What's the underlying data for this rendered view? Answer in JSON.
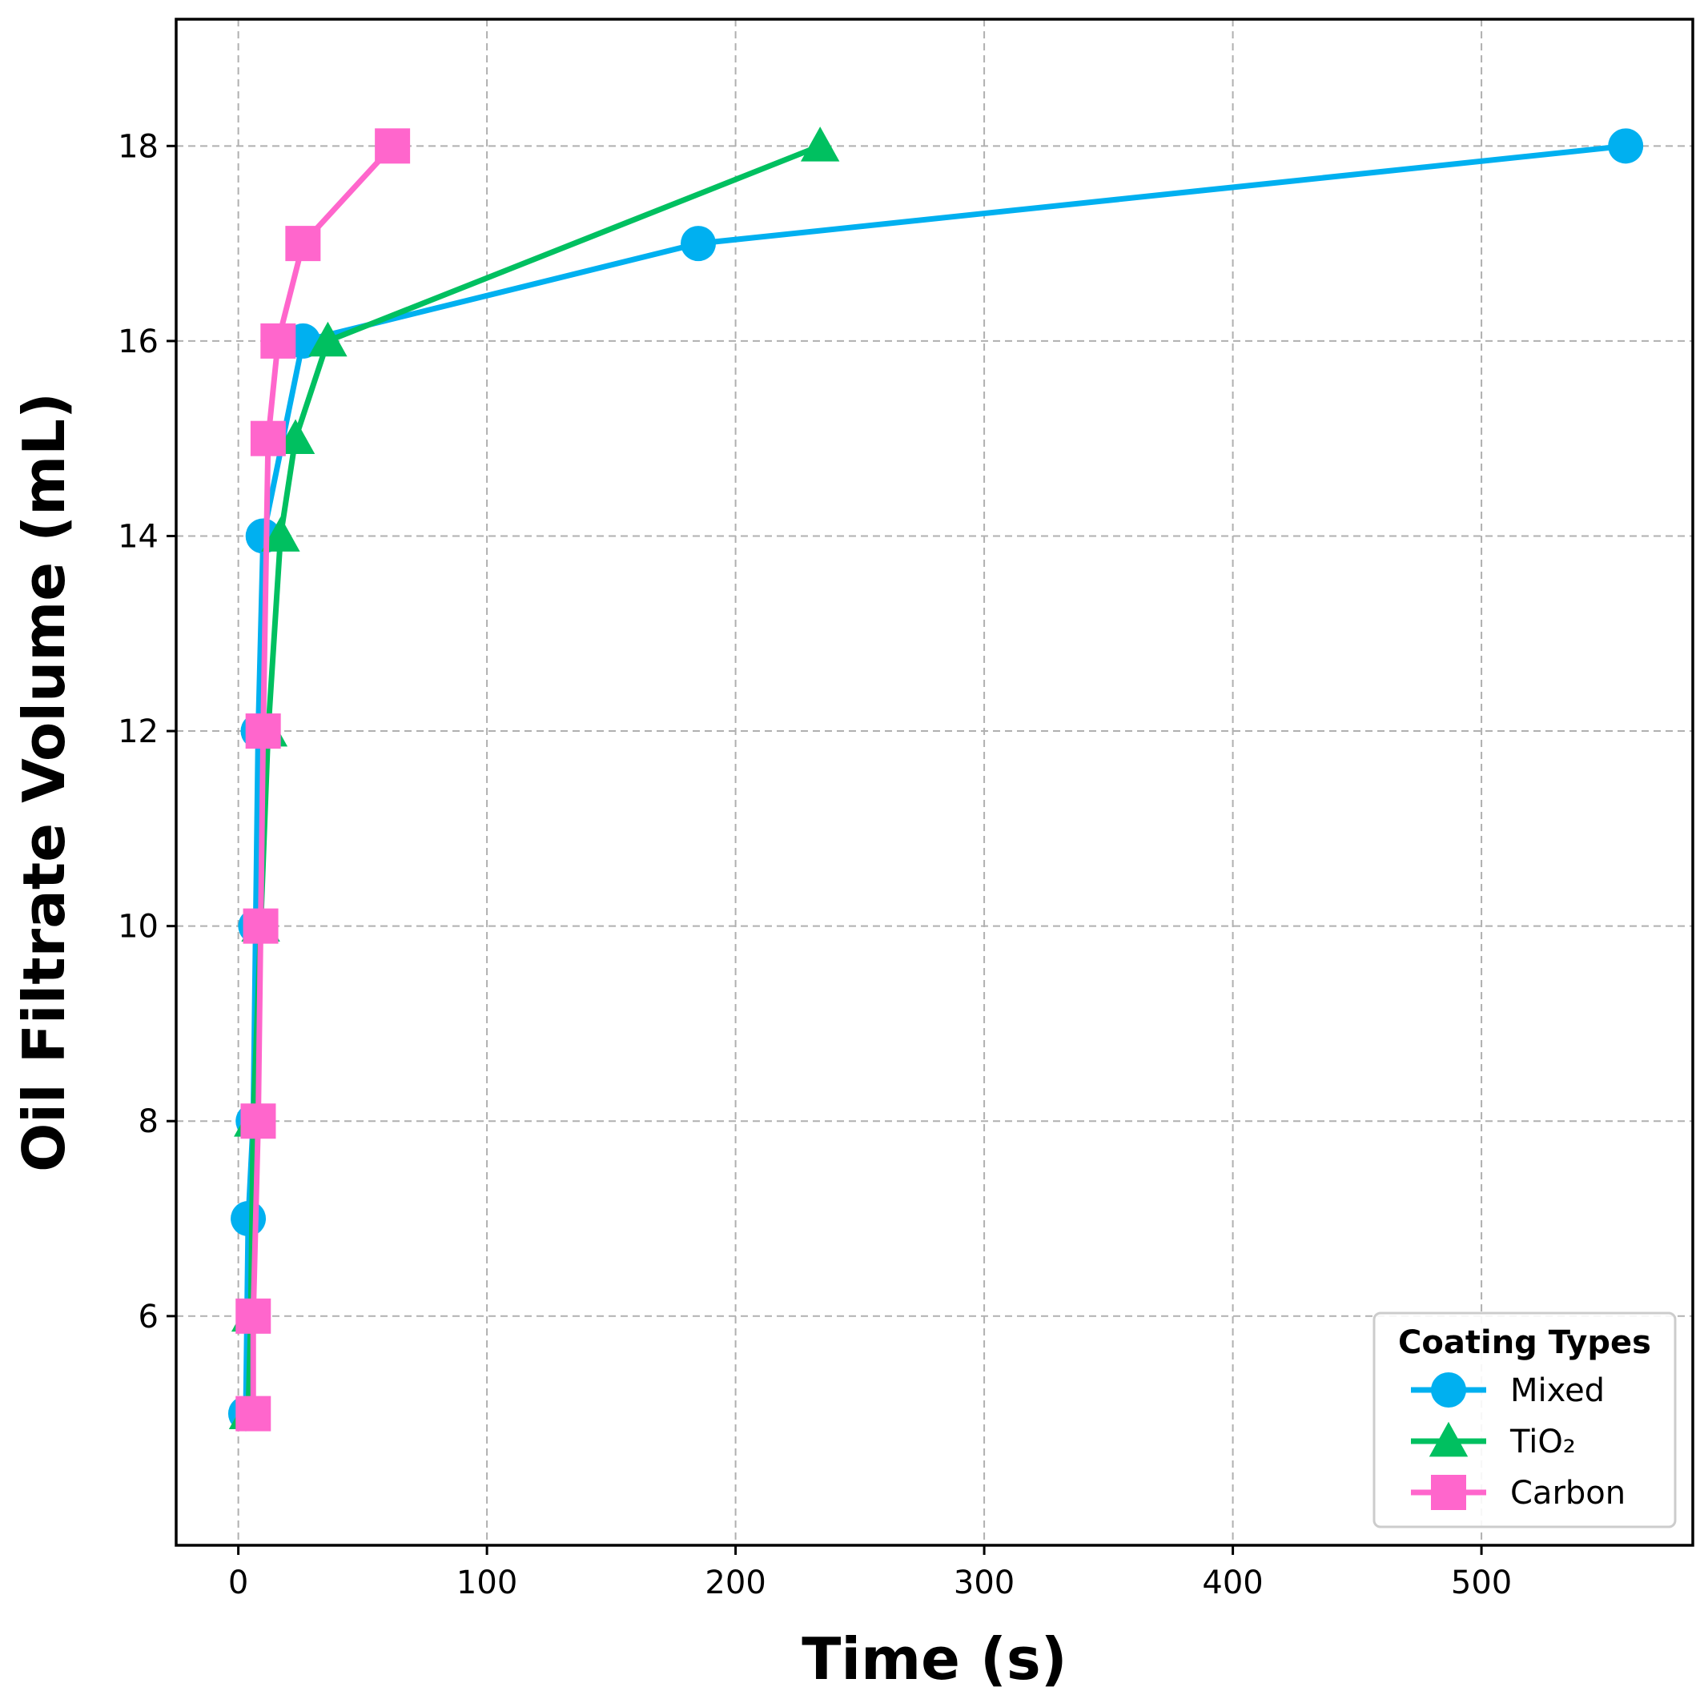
{
  "chart_data": {
    "type": "line",
    "title": "",
    "xlabel": "Time (s)",
    "ylabel": "Oil Filtrate Volume (mL)",
    "xlim": [
      -25,
      585
    ],
    "ylim": [
      3.65,
      19.3
    ],
    "xticks": [
      0,
      100,
      200,
      300,
      400,
      500
    ],
    "yticks": [
      6,
      8,
      10,
      12,
      14,
      16,
      18
    ],
    "grid": true,
    "legend": {
      "title": "Coating Types",
      "position": "lower-right"
    },
    "series": [
      {
        "name": "Mixed",
        "color": "#00b0f0",
        "marker": "circle",
        "x": [
          3,
          4,
          6,
          7,
          8,
          10,
          26,
          185,
          558
        ],
        "y": [
          5,
          7,
          8,
          10,
          12,
          14,
          16,
          17,
          18
        ]
      },
      {
        "name": "TiO₂",
        "color": "#00c060",
        "marker": "triangle",
        "x": [
          4,
          5,
          6,
          9,
          12,
          17,
          23,
          36,
          234
        ],
        "y": [
          5,
          6,
          8,
          10,
          12,
          14,
          15,
          16,
          18
        ]
      },
      {
        "name": "Carbon",
        "color": "#ff66cc",
        "marker": "square",
        "x": [
          6,
          6,
          8,
          9,
          10,
          12,
          16,
          26,
          62
        ],
        "y": [
          5,
          6,
          8,
          10,
          12,
          15,
          16,
          17,
          18
        ]
      }
    ]
  }
}
